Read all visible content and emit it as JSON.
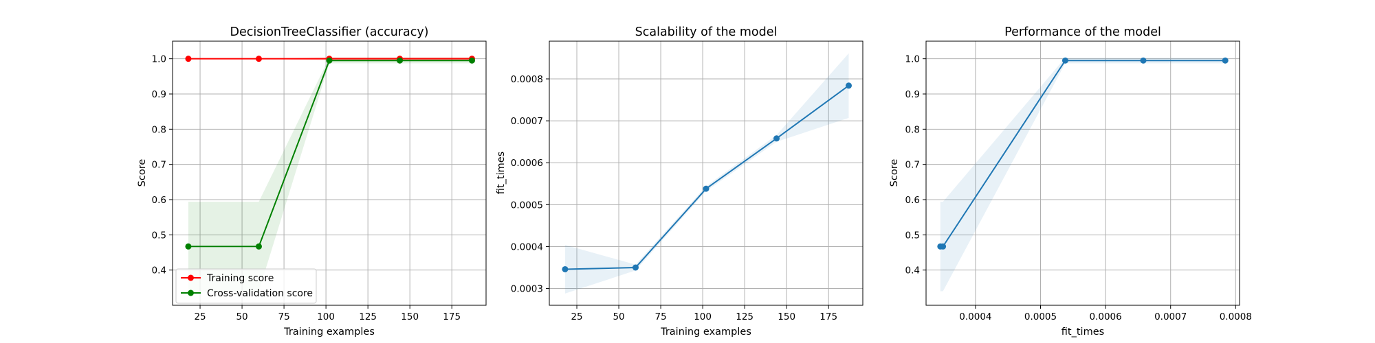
{
  "chart_data": [
    {
      "type": "line",
      "title": "DecisionTreeClassifier (accuracy)",
      "xlabel": "Training examples",
      "ylabel": "Score",
      "xlim": [
        8.6,
        195.4
      ],
      "ylim": [
        0.3,
        1.05
      ],
      "xticks": [
        25,
        50,
        75,
        100,
        125,
        150,
        175
      ],
      "yticks": [
        0.4,
        0.5,
        0.6,
        0.7,
        0.8,
        0.9,
        1.0
      ],
      "xtick_labels": [
        "25",
        "50",
        "75",
        "100",
        "125",
        "150",
        "175"
      ],
      "ytick_labels": [
        "0.4",
        "0.5",
        "0.6",
        "0.7",
        "0.8",
        "0.9",
        "1.0"
      ],
      "grid": true,
      "legend_position": "lower-left",
      "x": [
        18,
        60,
        102,
        144,
        187
      ],
      "series": [
        {
          "name": "Training score",
          "color": "#ff0000",
          "values": [
            1.0,
            1.0,
            1.0,
            1.0,
            1.0
          ],
          "band_lower": [
            1.0,
            1.0,
            0.995,
            0.995,
            0.995
          ],
          "band_upper": [
            1.0,
            1.0,
            1.005,
            1.005,
            1.005
          ]
        },
        {
          "name": "Cross-validation score",
          "color": "#008000",
          "values": [
            0.467,
            0.467,
            0.995,
            0.995,
            0.995
          ],
          "band_lower": [
            0.34,
            0.34,
            0.987,
            0.987,
            0.987
          ],
          "band_upper": [
            0.594,
            0.594,
            1.003,
            1.003,
            1.003
          ]
        }
      ]
    },
    {
      "type": "line",
      "title": "Scalability of the model",
      "xlabel": "Training examples",
      "ylabel": "fit_times",
      "xlim": [
        8.6,
        195.4
      ],
      "ylim": [
        0.00026,
        0.00089
      ],
      "xticks": [
        25,
        50,
        75,
        100,
        125,
        150,
        175
      ],
      "yticks": [
        0.0003,
        0.0004,
        0.0005,
        0.0006,
        0.0007,
        0.0008
      ],
      "xtick_labels": [
        "25",
        "50",
        "75",
        "100",
        "125",
        "150",
        "175"
      ],
      "ytick_labels": [
        "0.0003",
        "0.0004",
        "0.0005",
        "0.0006",
        "0.0007",
        "0.0008"
      ],
      "grid": true,
      "x": [
        18,
        60,
        102,
        144,
        187
      ],
      "series": [
        {
          "color": "#1f77b4",
          "values": [
            0.000346,
            0.00035,
            0.000538,
            0.000658,
            0.000784
          ],
          "band_lower": [
            0.000288,
            0.000343,
            0.000532,
            0.00065,
            0.000707
          ],
          "band_upper": [
            0.000404,
            0.000357,
            0.000544,
            0.000666,
            0.000861
          ]
        }
      ]
    },
    {
      "type": "line",
      "title": "Performance of the model",
      "xlabel": "fit_times",
      "ylabel": "Score",
      "xlim": [
        0.000324,
        0.000806
      ],
      "ylim": [
        0.3,
        1.05
      ],
      "xticks": [
        0.0004,
        0.0005,
        0.0006,
        0.0007,
        0.0008
      ],
      "yticks": [
        0.4,
        0.5,
        0.6,
        0.7,
        0.8,
        0.9,
        1.0
      ],
      "xtick_labels": [
        "0.0004",
        "0.0005",
        "0.0006",
        "0.0007",
        "0.0008"
      ],
      "ytick_labels": [
        "0.4",
        "0.5",
        "0.6",
        "0.7",
        "0.8",
        "0.9",
        "1.0"
      ],
      "grid": true,
      "x": [
        0.000346,
        0.00035,
        0.000538,
        0.000658,
        0.000784
      ],
      "series": [
        {
          "color": "#1f77b4",
          "values": [
            0.467,
            0.467,
            0.995,
            0.995,
            0.995
          ],
          "band_lower": [
            0.34,
            0.34,
            0.987,
            0.987,
            0.987
          ],
          "band_upper": [
            0.594,
            0.594,
            1.003,
            1.003,
            1.003
          ]
        }
      ]
    }
  ]
}
